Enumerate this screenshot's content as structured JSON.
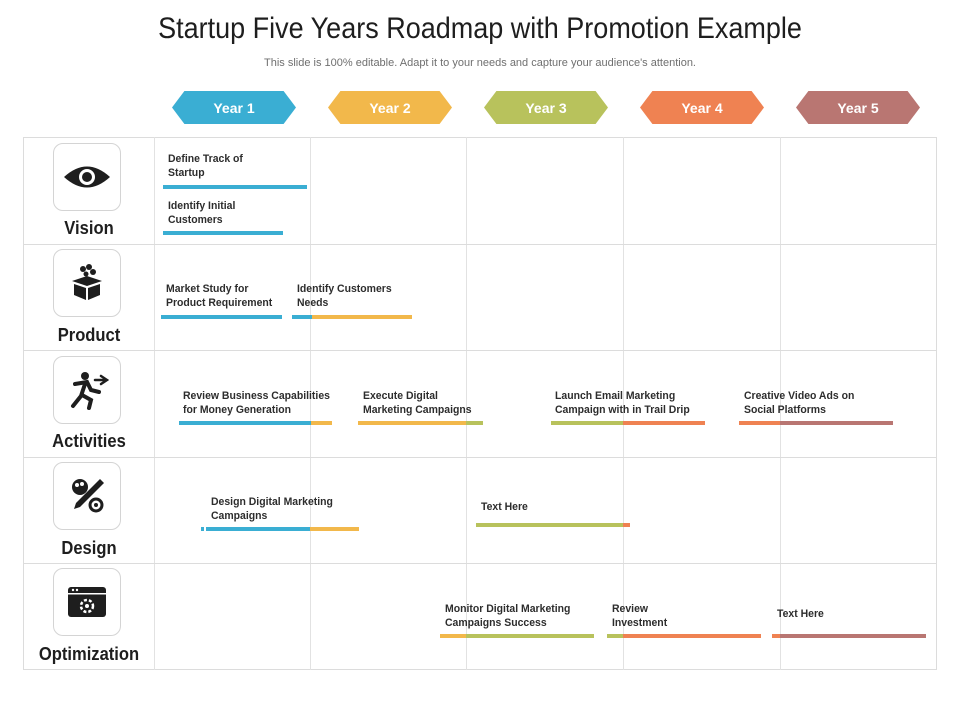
{
  "title": "Startup Five Years Roadmap with Promotion Example",
  "subtitle": "This slide is 100% editable. Adapt it to your needs and capture your audience's attention.",
  "years": [
    {
      "label": "Year 1",
      "color": "#3aaed3"
    },
    {
      "label": "Year 2",
      "color": "#f2b84b"
    },
    {
      "label": "Year 3",
      "color": "#b8c25c"
    },
    {
      "label": "Year 4",
      "color": "#ef8252"
    },
    {
      "label": "Year 5",
      "color": "#b97672"
    }
  ],
  "rows": [
    {
      "label": "Vision",
      "icon": "eye-icon"
    },
    {
      "label": "Product",
      "icon": "box-icon"
    },
    {
      "label": "Activities",
      "icon": "runner-icon"
    },
    {
      "label": "Design",
      "icon": "design-tools-icon"
    },
    {
      "label": "Optimization",
      "icon": "browser-gear-icon"
    }
  ],
  "tasks": {
    "vision_1": "Define Track of\nStartup",
    "vision_2": "Identify Initial\nCustomers",
    "product_1": "Market Study for\nProduct Requirement",
    "product_2": "Identify Customers\nNeeds",
    "activities_1": "Review Business Capabilities\nfor Money Generation",
    "activities_2": "Execute Digital\nMarketing Campaigns",
    "activities_3": "Launch Email Marketing\nCampaign with in Trail Drip",
    "activities_4": "Creative Video Ads on\nSocial Platforms",
    "design_1": "Design Digital Marketing\nCampaigns",
    "design_2": "Text Here",
    "optimization_1": "Monitor Digital Marketing\nCampaigns Success",
    "optimization_2": "Review\nInvestment",
    "optimization_3": "Text Here"
  }
}
